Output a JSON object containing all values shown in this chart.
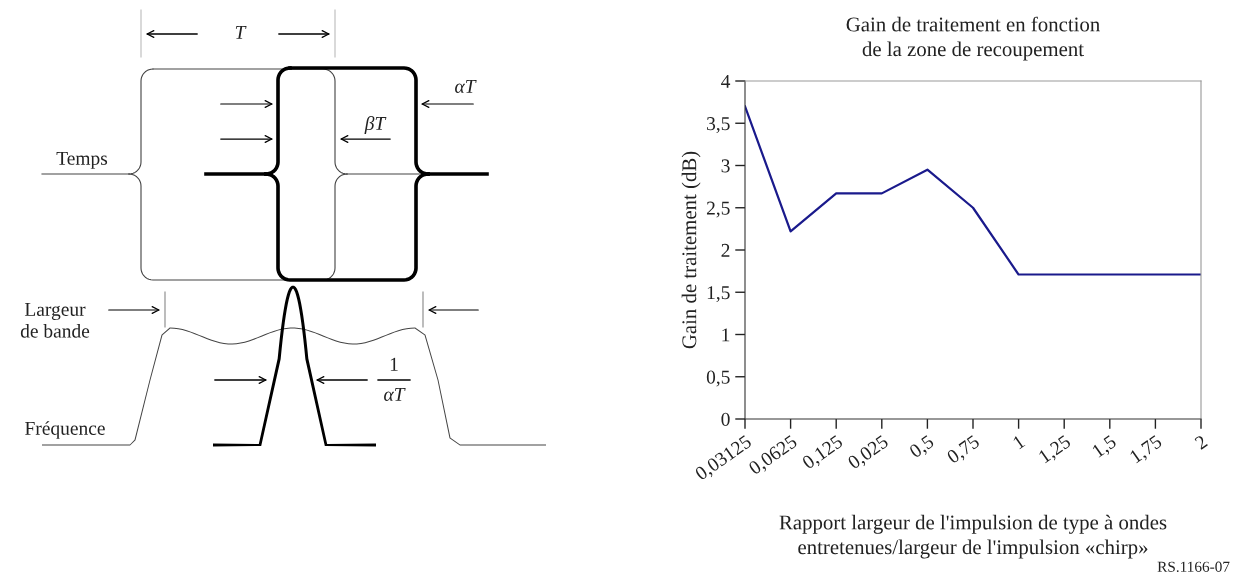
{
  "chart_data": [
    {
      "type": "other",
      "annotations": [
        "T",
        "αT",
        "βT",
        "1",
        "αT",
        "Temps",
        "Largeur\nde bande",
        "Fréquence"
      ]
    },
    {
      "type": "line",
      "title": "Gain de traitement en fonction\nde la zone de recoupement",
      "xlabel": "Rapport largeur de l'impulsion de type à ondes\nentretenues/largeur de l'impulsion «chirp»",
      "ylabel": "Gain de traitement (dB)",
      "categories": [
        "0,03125",
        "0,0625",
        "0,125",
        "0,025",
        "0,5",
        "0,75",
        "1",
        "1,25",
        "1,5",
        "1,75",
        "2"
      ],
      "series": [
        {
          "color": "#1a1a8c",
          "values": [
            3.7,
            2.22,
            2.67,
            2.67,
            2.95,
            2.5,
            1.71,
            1.71,
            1.71,
            1.71,
            1.71
          ]
        }
      ],
      "ylim": [
        0,
        4
      ],
      "yticks": [
        0,
        {
          "value": 0.5,
          "label": "0,5"
        },
        1,
        {
          "value": 1.5,
          "label": "1,5"
        },
        2,
        {
          "value": 2.5,
          "label": "2,5"
        },
        3,
        {
          "value": 3.5,
          "label": "3,5"
        },
        4
      ],
      "grid": false,
      "marker": "none",
      "line_style": "solid",
      "annotations": [
        "RS.1166-07"
      ]
    }
  ]
}
